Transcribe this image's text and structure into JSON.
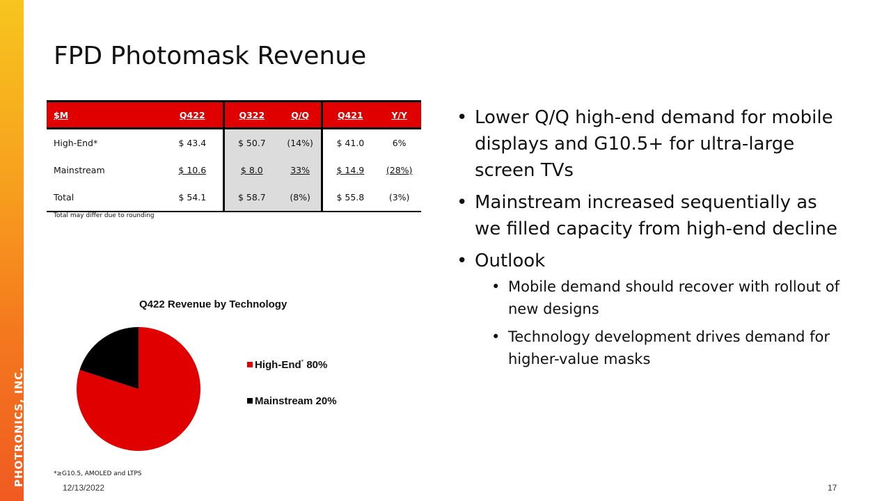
{
  "brand": {
    "sidebar_text": "PHOTRONICS, INC."
  },
  "slide": {
    "title": "FPD Photomask Revenue",
    "date": "12/13/2022",
    "page": "17"
  },
  "table": {
    "headers": [
      "$M",
      "Q422",
      "Q322",
      "Q/Q",
      "Q421",
      "Y/Y"
    ],
    "rows": [
      {
        "label": "High-End*",
        "q422": "$ 43.4",
        "q322": "$ 50.7",
        "qq": "(14%)",
        "q421": "$ 41.0",
        "yy": "6%"
      },
      {
        "label": "Mainstream",
        "q422": "$ 10.6",
        "q322": "$ 8.0",
        "qq": "33%",
        "q421": "$ 14.9",
        "yy": "(28%)"
      },
      {
        "label": "Total",
        "q422": "$ 54.1",
        "q322": "$ 58.7",
        "qq": "(8%)",
        "q421": "$ 55.8",
        "yy": "(3%)"
      }
    ],
    "note": "Total may differ due to rounding"
  },
  "chart_data": {
    "type": "pie",
    "title": "Q422 Revenue by Technology",
    "categories": [
      "High-End",
      "Mainstream"
    ],
    "values": [
      80,
      20
    ],
    "colors": [
      "#e00000",
      "#000000"
    ],
    "legend": [
      {
        "label": "High-End",
        "sup": "*",
        "value": "80%"
      },
      {
        "label": "Mainstream",
        "value": "20%"
      }
    ],
    "legend_position": "right"
  },
  "bullets": {
    "b1": "Lower Q/Q high-end demand for mobile displays and G10.5+ for ultra-large screen TVs",
    "b2": "Mainstream increased sequentially as we filled capacity from high-end decline",
    "b3": "Outlook",
    "b3_sub1": "Mobile demand should recover with rollout of new designs",
    "b3_sub2": "Technology development drives demand for higher-value masks"
  },
  "footnote": "*≥G10.5, AMOLED and LTPS",
  "colors": {
    "accent": "#e00000",
    "sidebar_top": "#f7c51e",
    "sidebar_bottom": "#f05a22"
  }
}
